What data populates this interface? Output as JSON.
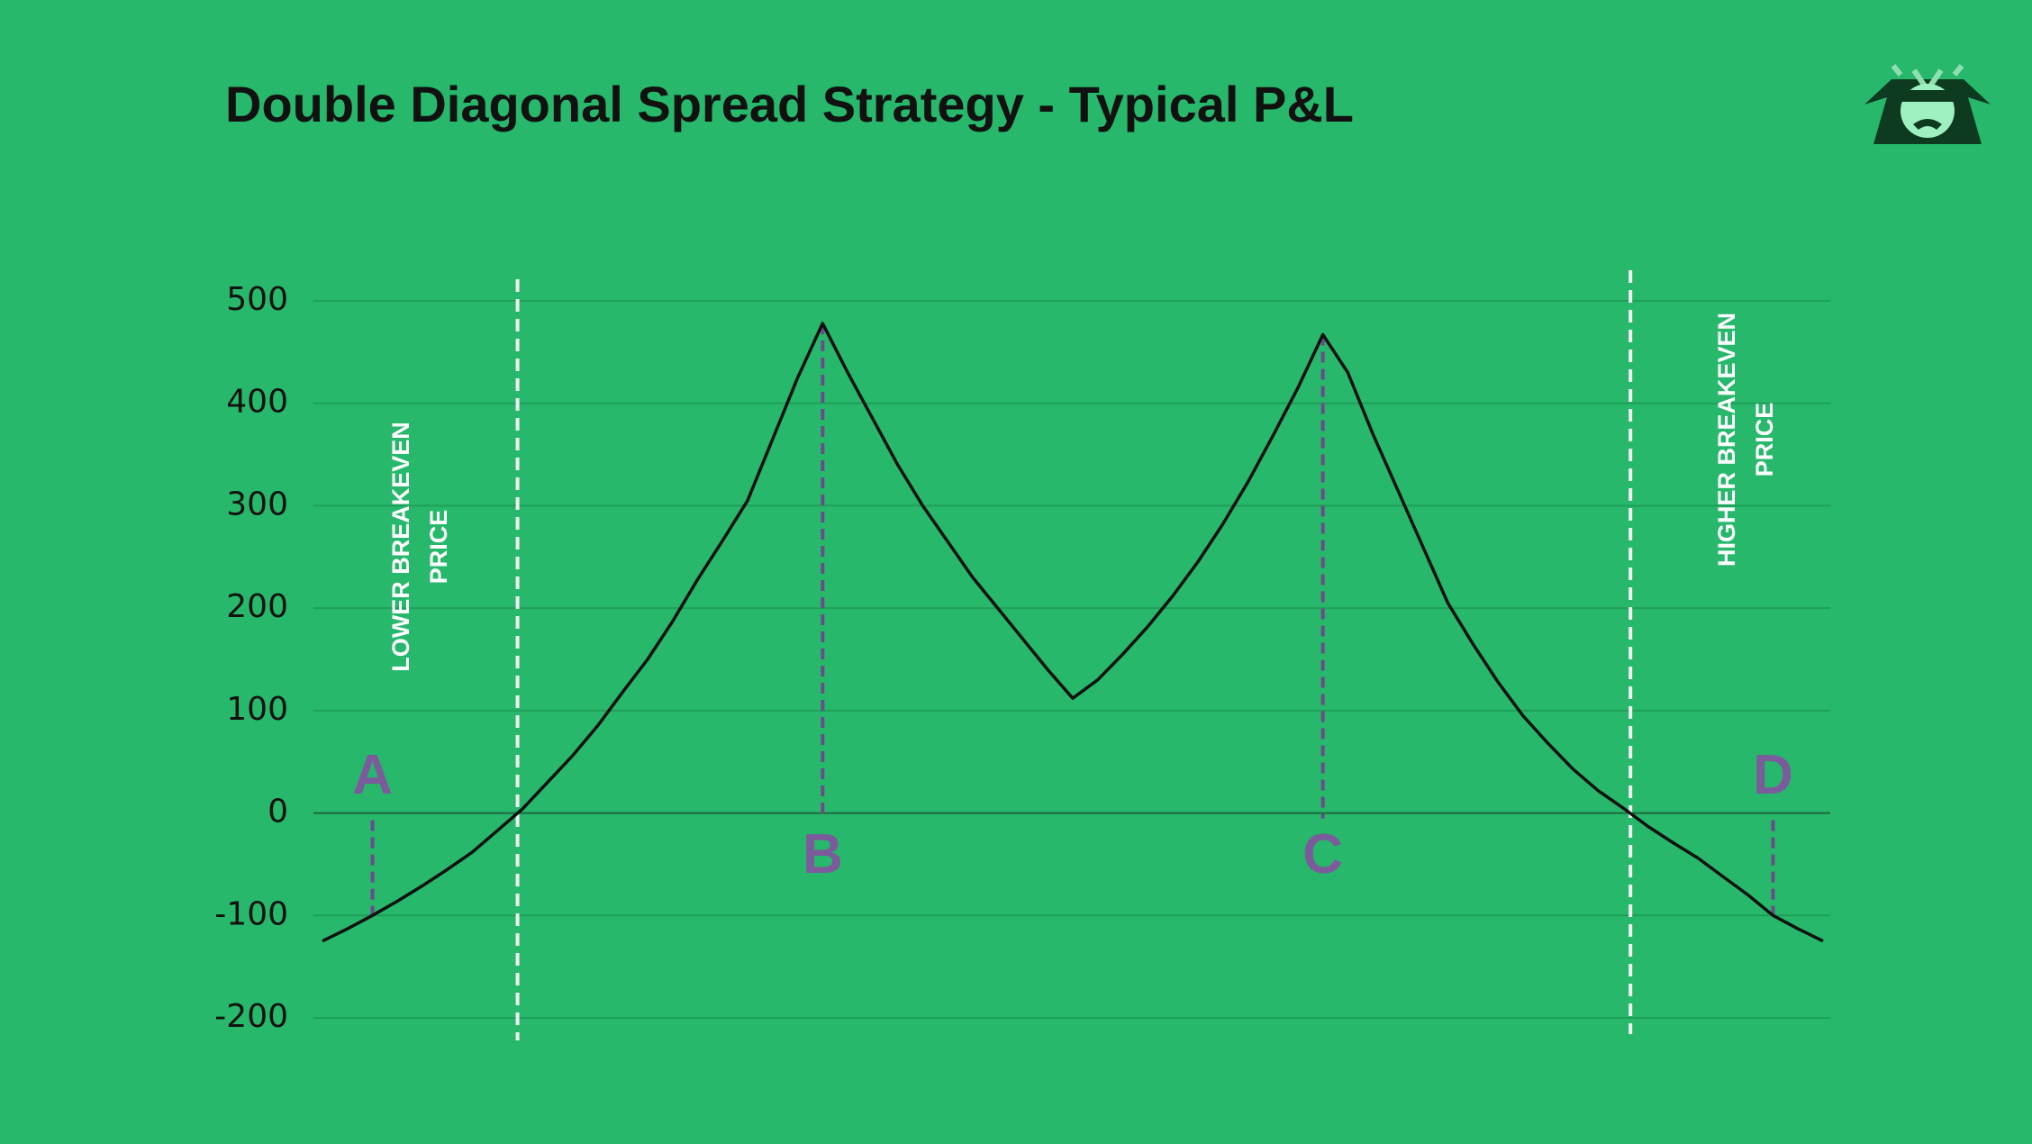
{
  "chart_data": {
    "type": "line",
    "title": "Double Diagonal Spread Strategy - Typical P&L",
    "series": [
      {
        "color": "#111111",
        "values": [
          -125,
          -113,
          -100,
          -86,
          -71,
          -55,
          -38,
          -17,
          4,
          30,
          56,
          85,
          118,
          150,
          187,
          228,
          266,
          305,
          365,
          425,
          478,
          430,
          385,
          340,
          300,
          265,
          230,
          200,
          170,
          140,
          112,
          130,
          155,
          182,
          212,
          245,
          282,
          323,
          368,
          415,
          467,
          430,
          370,
          315,
          260,
          205,
          165,
          128,
          95,
          68,
          43,
          22,
          5,
          -13,
          -29,
          -44,
          -62,
          -80,
          -100,
          -113,
          -125
        ]
      }
    ],
    "ylim": [
      -200,
      500
    ],
    "yticks": [
      -200,
      -100,
      0,
      100,
      200,
      300,
      400,
      500
    ],
    "grid": true,
    "annotations": [
      "A",
      "B",
      "C",
      "D"
    ],
    "breakeven_labels": {
      "lower": [
        "LOWER BREAKEVEN",
        "PRICE"
      ],
      "higher": [
        "HIGHER BREAKEVEN",
        "PRICE"
      ]
    }
  }
}
